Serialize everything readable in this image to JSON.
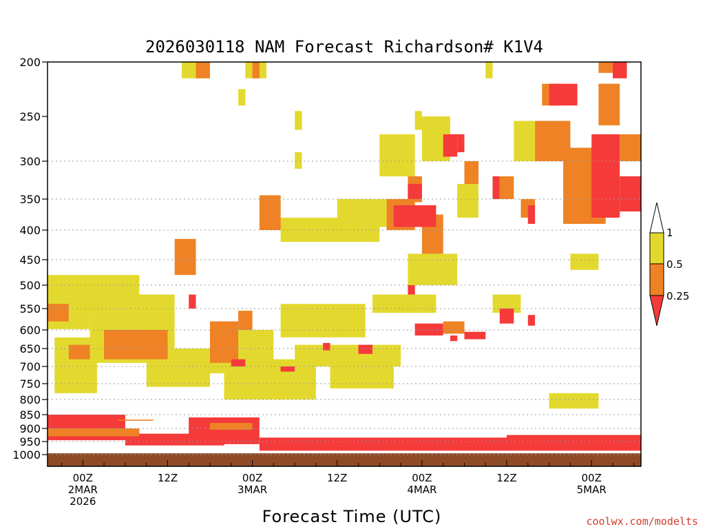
{
  "chart_data": {
    "type": "heatmap",
    "title": "2026030118 NAM Forecast Richardson# K1V4",
    "xlabel": "Forecast Time (UTC)",
    "ylabel": "",
    "credit": "coolwx.com/modelts",
    "y_axis": {
      "scale": "pressure (hPa)",
      "ylim": [
        1025,
        200
      ],
      "ticks": [
        200,
        250,
        300,
        350,
        400,
        450,
        500,
        550,
        600,
        650,
        700,
        750,
        800,
        850,
        900,
        950,
        1000
      ],
      "tick_labels": [
        "200",
        "250",
        "300",
        "350",
        "400",
        "450",
        "500",
        "550",
        "600",
        "650",
        "700",
        "750",
        "800",
        "850",
        "900",
        "950",
        "1000"
      ],
      "dotted_gridlines": [
        300,
        350,
        400,
        450,
        500,
        550,
        600,
        650,
        700,
        750,
        800,
        850,
        900,
        950,
        1000
      ]
    },
    "x_axis": {
      "range_hours_from_00Z_2MAR": [
        -5,
        79
      ],
      "ticks": [
        {
          "hour": 0,
          "lines": [
            "00Z",
            "2MAR",
            "2026"
          ]
        },
        {
          "hour": 12,
          "lines": [
            "12Z"
          ]
        },
        {
          "hour": 24,
          "lines": [
            "00Z",
            "3MAR"
          ]
        },
        {
          "hour": 36,
          "lines": [
            "12Z"
          ]
        },
        {
          "hour": 48,
          "lines": [
            "00Z",
            "4MAR"
          ]
        },
        {
          "hour": 60,
          "lines": [
            "12Z"
          ]
        },
        {
          "hour": 72,
          "lines": [
            "00Z",
            "5MAR"
          ]
        }
      ]
    },
    "legend": {
      "placement": "right",
      "entries": [
        {
          "label": "1",
          "color": "#ffffff"
        },
        {
          "label": "0.5",
          "color": "#e3d92e"
        },
        {
          "label": "0.25",
          "color": "#ee8224"
        },
        {
          "label": "",
          "color": "#f53a3a"
        }
      ]
    },
    "colors": {
      "yellow": "#e3d92e",
      "orange": "#ee8224",
      "red": "#f53a3a",
      "ground": "#8e4b26"
    },
    "ground_below_hpa": 995,
    "regions": [
      {
        "cls": "yellow",
        "t0": -5,
        "t1": 1,
        "p0": 512,
        "p1": 598
      },
      {
        "cls": "yellow",
        "t0": -5,
        "t1": 8,
        "p0": 480,
        "p1": 560
      },
      {
        "cls": "yellow",
        "t0": 1,
        "t1": 13,
        "p0": 520,
        "p1": 690
      },
      {
        "cls": "yellow",
        "t0": -4,
        "t1": 2,
        "p0": 620,
        "p1": 780
      },
      {
        "cls": "yellow",
        "t0": 9,
        "t1": 18,
        "p0": 650,
        "p1": 760
      },
      {
        "cls": "yellow",
        "t0": 18,
        "t1": 27,
        "p0": 600,
        "p1": 720
      },
      {
        "cls": "yellow",
        "t0": 20,
        "t1": 33,
        "p0": 680,
        "p1": 800
      },
      {
        "cls": "yellow",
        "t0": 28,
        "t1": 40,
        "p0": 540,
        "p1": 620
      },
      {
        "cls": "yellow",
        "t0": 30,
        "t1": 45,
        "p0": 640,
        "p1": 700
      },
      {
        "cls": "yellow",
        "t0": 35,
        "t1": 44,
        "p0": 700,
        "p1": 765
      },
      {
        "cls": "yellow",
        "t0": 28,
        "t1": 42,
        "p0": 380,
        "p1": 420
      },
      {
        "cls": "yellow",
        "t0": 36,
        "t1": 43,
        "p0": 350,
        "p1": 395
      },
      {
        "cls": "yellow",
        "t0": 41,
        "t1": 50,
        "p0": 520,
        "p1": 560
      },
      {
        "cls": "yellow",
        "t0": 46,
        "t1": 53,
        "p0": 440,
        "p1": 500
      },
      {
        "cls": "yellow",
        "t0": 58,
        "t1": 62,
        "p0": 520,
        "p1": 560
      },
      {
        "cls": "yellow",
        "t0": 69,
        "t1": 73,
        "p0": 440,
        "p1": 470
      },
      {
        "cls": "yellow",
        "t0": 66,
        "t1": 73,
        "p0": 780,
        "p1": 830
      },
      {
        "cls": "yellow",
        "t0": 53,
        "t1": 56,
        "p0": 330,
        "p1": 380
      },
      {
        "cls": "yellow",
        "t0": 42,
        "t1": 47,
        "p0": 270,
        "p1": 320
      },
      {
        "cls": "yellow",
        "t0": 48,
        "t1": 52,
        "p0": 250,
        "p1": 300
      },
      {
        "cls": "yellow",
        "t0": 23,
        "t1": 26,
        "p0": 200,
        "p1": 215
      },
      {
        "cls": "yellow",
        "t0": 14,
        "t1": 17,
        "p0": 200,
        "p1": 215
      },
      {
        "cls": "yellow",
        "t0": 22,
        "t1": 23,
        "p0": 225,
        "p1": 240
      },
      {
        "cls": "yellow",
        "t0": 30,
        "t1": 31,
        "p0": 245,
        "p1": 265
      },
      {
        "cls": "yellow",
        "t0": 30,
        "t1": 31,
        "p0": 290,
        "p1": 310
      },
      {
        "cls": "yellow",
        "t0": 57,
        "t1": 58,
        "p0": 200,
        "p1": 215
      },
      {
        "cls": "yellow",
        "t0": 61,
        "t1": 64,
        "p0": 255,
        "p1": 300
      },
      {
        "cls": "yellow",
        "t0": 47,
        "t1": 48,
        "p0": 245,
        "p1": 265
      },
      {
        "cls": "orange",
        "t0": -5,
        "t1": -2,
        "p0": 540,
        "p1": 580
      },
      {
        "cls": "orange",
        "t0": -2,
        "t1": 1,
        "p0": 640,
        "p1": 680
      },
      {
        "cls": "orange",
        "t0": 3,
        "t1": 12,
        "p0": 600,
        "p1": 680
      },
      {
        "cls": "orange",
        "t0": 13,
        "t1": 16,
        "p0": 415,
        "p1": 480
      },
      {
        "cls": "orange",
        "t0": 18,
        "t1": 22,
        "p0": 580,
        "p1": 690
      },
      {
        "cls": "orange",
        "t0": 22,
        "t1": 24,
        "p0": 555,
        "p1": 600
      },
      {
        "cls": "orange",
        "t0": 25,
        "t1": 28,
        "p0": 345,
        "p1": 400
      },
      {
        "cls": "orange",
        "t0": 43,
        "t1": 47,
        "p0": 350,
        "p1": 400
      },
      {
        "cls": "orange",
        "t0": 46,
        "t1": 48,
        "p0": 320,
        "p1": 355
      },
      {
        "cls": "orange",
        "t0": 48,
        "t1": 51,
        "p0": 375,
        "p1": 440
      },
      {
        "cls": "orange",
        "t0": 51,
        "t1": 54,
        "p0": 580,
        "p1": 610
      },
      {
        "cls": "orange",
        "t0": 54,
        "t1": 56,
        "p0": 300,
        "p1": 330
      },
      {
        "cls": "orange",
        "t0": 59,
        "t1": 61,
        "p0": 320,
        "p1": 350
      },
      {
        "cls": "orange",
        "t0": 62,
        "t1": 64,
        "p0": 350,
        "p1": 380
      },
      {
        "cls": "orange",
        "t0": 64,
        "t1": 69,
        "p0": 255,
        "p1": 300
      },
      {
        "cls": "orange",
        "t0": 68,
        "t1": 74,
        "p0": 285,
        "p1": 390
      },
      {
        "cls": "orange",
        "t0": 65,
        "t1": 68,
        "p0": 220,
        "p1": 240
      },
      {
        "cls": "orange",
        "t0": 73,
        "t1": 76,
        "p0": 220,
        "p1": 260
      },
      {
        "cls": "orange",
        "t0": 76,
        "t1": 79,
        "p0": 270,
        "p1": 300
      },
      {
        "cls": "orange",
        "t0": 73,
        "t1": 75,
        "p0": 200,
        "p1": 210
      },
      {
        "cls": "orange",
        "t0": 16,
        "t1": 18,
        "p0": 200,
        "p1": 215
      },
      {
        "cls": "orange",
        "t0": 24,
        "t1": 25,
        "p0": 200,
        "p1": 215
      },
      {
        "cls": "red",
        "t0": 44,
        "t1": 50,
        "p0": 360,
        "p1": 395
      },
      {
        "cls": "red",
        "t0": 46,
        "t1": 48,
        "p0": 330,
        "p1": 350
      },
      {
        "cls": "red",
        "t0": 51,
        "t1": 53,
        "p0": 270,
        "p1": 295
      },
      {
        "cls": "red",
        "t0": 53,
        "t1": 54,
        "p0": 270,
        "p1": 290
      },
      {
        "cls": "red",
        "t0": 58,
        "t1": 59,
        "p0": 320,
        "p1": 350
      },
      {
        "cls": "red",
        "t0": 63,
        "t1": 64,
        "p0": 360,
        "p1": 390
      },
      {
        "cls": "red",
        "t0": 66,
        "t1": 70,
        "p0": 220,
        "p1": 240
      },
      {
        "cls": "red",
        "t0": 72,
        "t1": 76,
        "p0": 270,
        "p1": 380
      },
      {
        "cls": "red",
        "t0": 76,
        "t1": 79,
        "p0": 320,
        "p1": 370
      },
      {
        "cls": "red",
        "t0": 75,
        "t1": 77,
        "p0": 200,
        "p1": 215
      },
      {
        "cls": "red",
        "t0": 47,
        "t1": 51,
        "p0": 585,
        "p1": 615
      },
      {
        "cls": "red",
        "t0": 46,
        "t1": 47,
        "p0": 500,
        "p1": 520
      },
      {
        "cls": "red",
        "t0": 54,
        "t1": 57,
        "p0": 605,
        "p1": 625
      },
      {
        "cls": "red",
        "t0": 52,
        "t1": 53,
        "p0": 615,
        "p1": 630
      },
      {
        "cls": "red",
        "t0": 59,
        "t1": 61,
        "p0": 550,
        "p1": 585
      },
      {
        "cls": "red",
        "t0": 63,
        "t1": 64,
        "p0": 565,
        "p1": 590
      },
      {
        "cls": "red",
        "t0": 21,
        "t1": 23,
        "p0": 680,
        "p1": 700
      },
      {
        "cls": "red",
        "t0": 15,
        "t1": 16,
        "p0": 520,
        "p1": 550
      },
      {
        "cls": "red",
        "t0": 34,
        "t1": 35,
        "p0": 635,
        "p1": 655
      },
      {
        "cls": "red",
        "t0": 39,
        "t1": 41,
        "p0": 640,
        "p1": 665
      },
      {
        "cls": "red",
        "t0": 28,
        "t1": 30,
        "p0": 700,
        "p1": 715
      },
      {
        "cls": "red",
        "t0": -5,
        "t1": 6,
        "p0": 850,
        "p1": 945
      },
      {
        "cls": "red",
        "t0": 6,
        "t1": 20,
        "p0": 920,
        "p1": 965
      },
      {
        "cls": "red",
        "t0": 15,
        "t1": 25,
        "p0": 860,
        "p1": 960
      },
      {
        "cls": "red",
        "t0": 25,
        "t1": 79,
        "p0": 935,
        "p1": 985
      },
      {
        "cls": "red",
        "t0": 60,
        "t1": 79,
        "p0": 925,
        "p1": 950
      },
      {
        "cls": "orange",
        "t0": -5,
        "t1": 8,
        "p0": 900,
        "p1": 930
      },
      {
        "cls": "orange",
        "t0": 18,
        "t1": 24,
        "p0": 880,
        "p1": 905
      },
      {
        "cls": "orange",
        "t0": 5,
        "t1": 10,
        "p0": 868,
        "p1": 872
      }
    ]
  }
}
